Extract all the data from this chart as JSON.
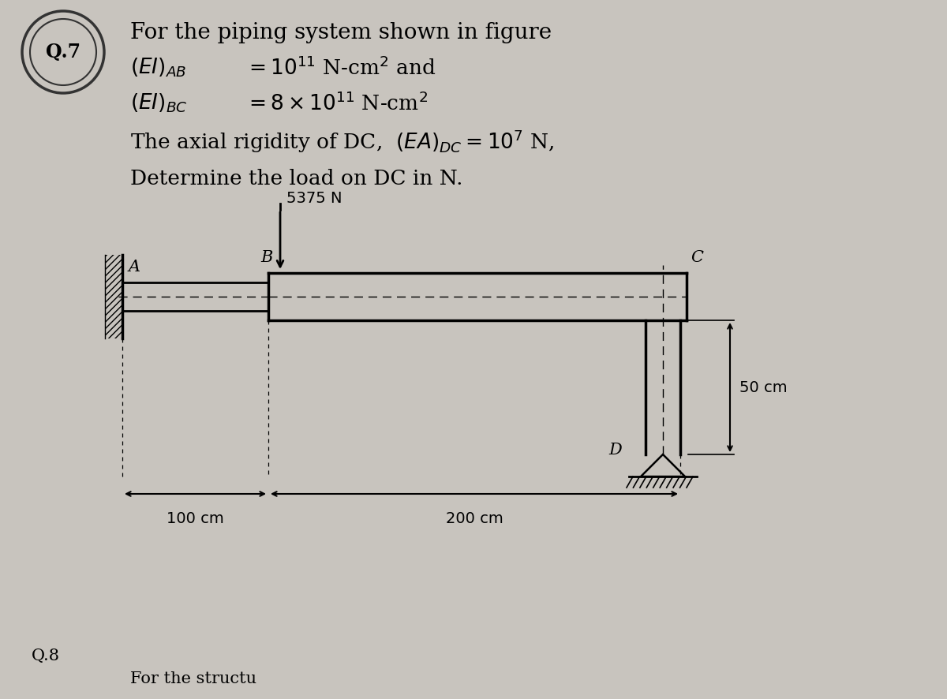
{
  "bg_color": "#c8c4be",
  "title_text": "For the piping system shown in figure",
  "load_label": "5375 N",
  "label_A": "A",
  "label_B": "B",
  "label_C": "C",
  "label_D": "D",
  "dim_50": "50 cm",
  "dim_100": "100 cm",
  "dim_200": "200 cm",
  "q_number": "Q.7",
  "q8_text": "Q.8",
  "bottom_text": "For the structu"
}
